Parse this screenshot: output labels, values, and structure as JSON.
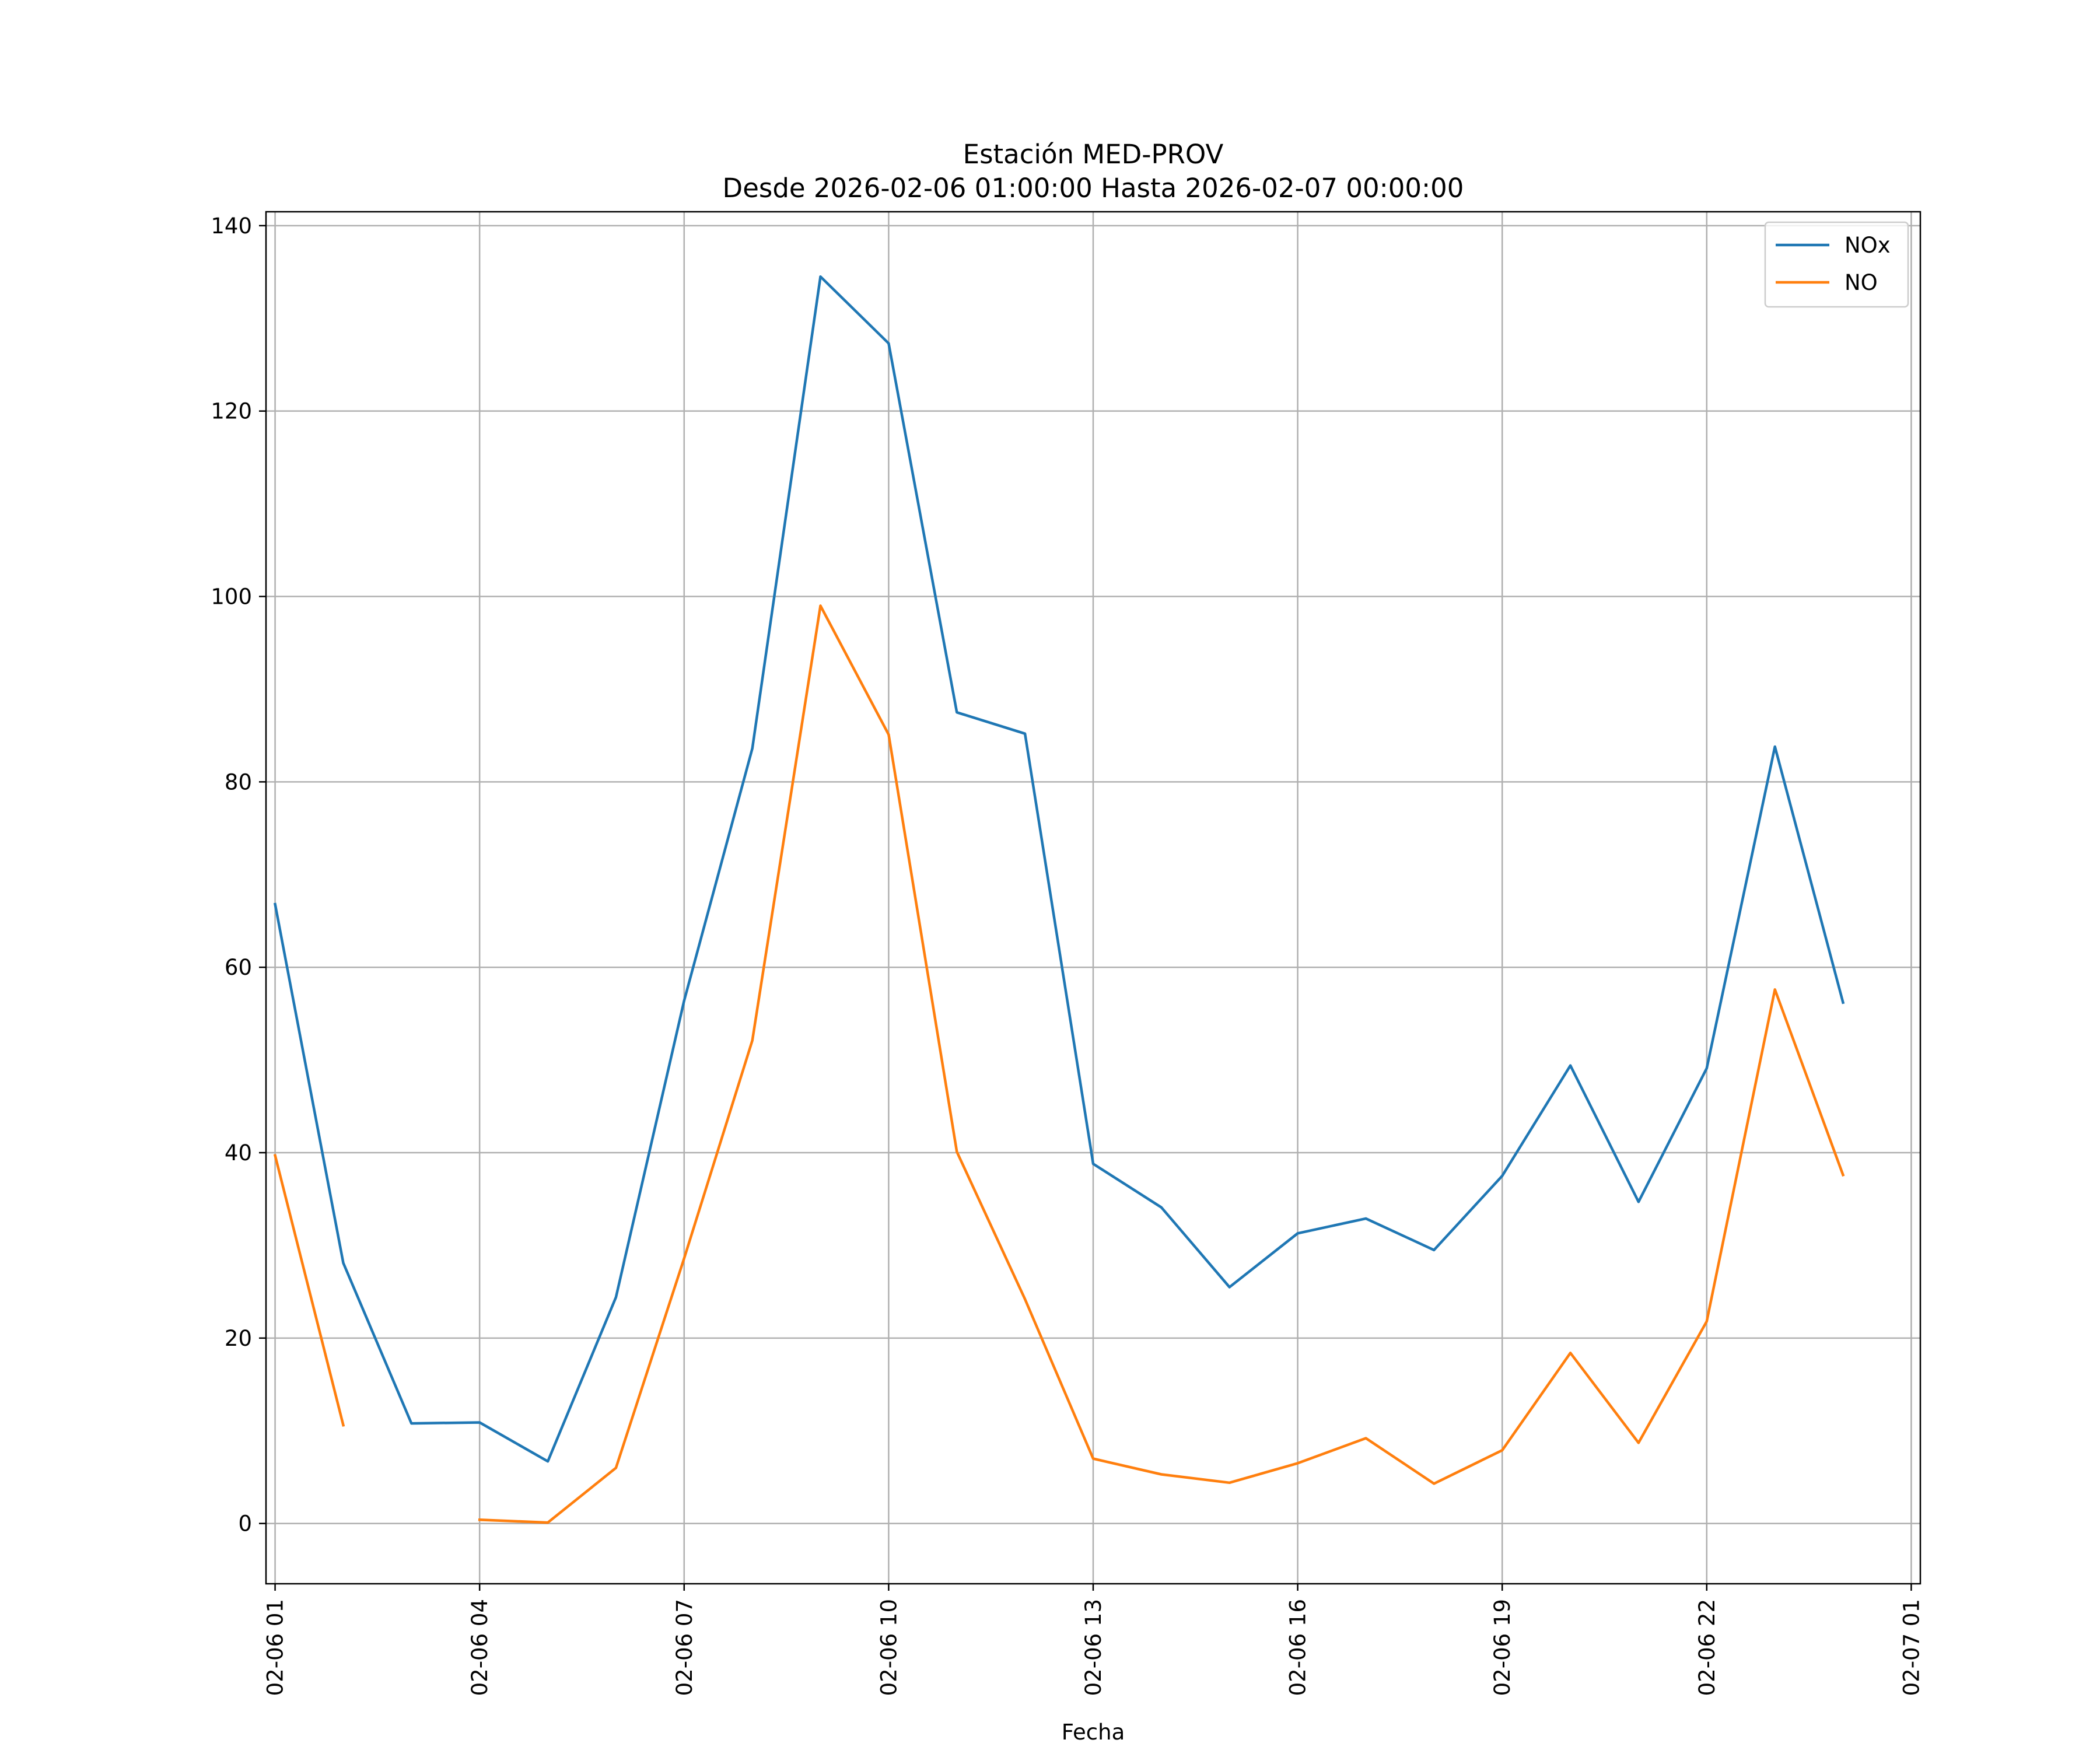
{
  "chart_data": {
    "type": "line",
    "title_line1": "Estación MED-PROV",
    "title_line2": "Desde 2026-02-06 01:00:00 Hasta 2026-02-07 00:00:00",
    "xlabel": "Fecha",
    "ylabel": "",
    "x": [
      "02-06 01",
      "02-06 02",
      "02-06 03",
      "02-06 04",
      "02-06 05",
      "02-06 06",
      "02-06 07",
      "02-06 08",
      "02-06 09",
      "02-06 10",
      "02-06 11",
      "02-06 12",
      "02-06 13",
      "02-06 14",
      "02-06 15",
      "02-06 16",
      "02-06 17",
      "02-06 18",
      "02-06 19",
      "02-06 20",
      "02-06 21",
      "02-06 22",
      "02-06 23",
      "02-07 00"
    ],
    "xticks": [
      "02-06 01",
      "02-06 04",
      "02-06 07",
      "02-06 10",
      "02-06 13",
      "02-06 16",
      "02-06 19",
      "02-06 22",
      "02-07 01"
    ],
    "yticks": [
      0,
      20,
      40,
      60,
      80,
      100,
      120,
      140
    ],
    "xlim": [
      "02-06 00:52",
      "02-07 01:08"
    ],
    "ylim": [
      -6.5,
      141.5
    ],
    "grid": true,
    "legend_position": "top-right",
    "series": [
      {
        "name": "NOx",
        "color": "#1f77b4",
        "values": [
          66.8,
          28.1,
          10.8,
          10.9,
          6.7,
          24.4,
          56.4,
          83.6,
          134.5,
          127.3,
          87.5,
          85.2,
          38.8,
          34.1,
          25.5,
          31.3,
          32.9,
          29.5,
          37.5,
          49.4,
          34.7,
          49.1,
          83.8,
          56.2
        ]
      },
      {
        "name": "NO",
        "color": "#ff7f0e",
        "values": [
          39.7,
          10.6,
          null,
          0.4,
          0.1,
          6.0,
          28.6,
          52.1,
          99.0,
          85.1,
          40.1,
          24.2,
          7.0,
          5.3,
          4.4,
          6.5,
          9.2,
          4.3,
          7.9,
          18.4,
          8.7,
          21.8,
          57.6,
          37.6
        ]
      }
    ]
  }
}
